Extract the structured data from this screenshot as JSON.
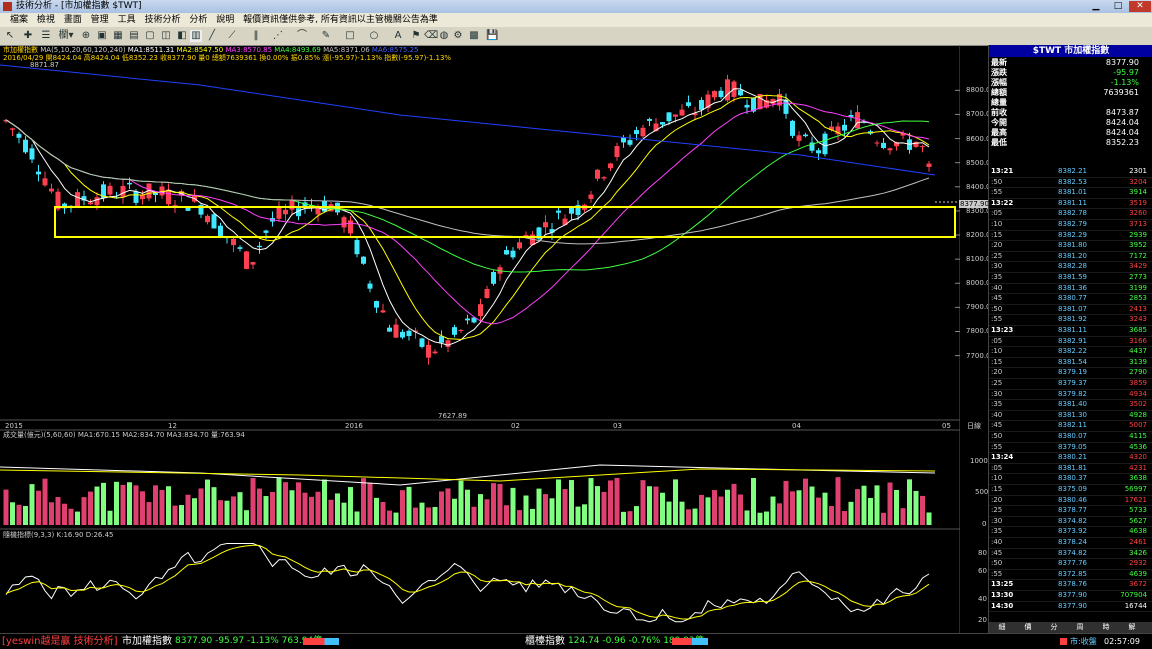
{
  "window": {
    "title": "技術分析 - [市加權指數 $TWT]"
  },
  "menu": [
    "檔案",
    "檢視",
    "畫面",
    "管理",
    "工具",
    "技術分析",
    "分析",
    "說明",
    "報價資訊僅供參考, 所有資訊以主管機關公告為準"
  ],
  "chart": {
    "ma_legend": "MA(5,10,20,60,120,240)",
    "ma1": "MA1:8511.31",
    "ma2": "MA2:8547.50",
    "ma3": "MA3:8570.85",
    "ma4": "MA4:8493.69",
    "ma5": "MA5:8371.06",
    "ma6": "MA6:8575.25",
    "name_label": "市加權指數",
    "info_line": "2016/04/29 開8424.04 高8424.04 低8352.23 收8377.90 量0 總額7639361 換0.00% 振0.85% 漲(-95.97)-1.13% 指數(-95.97)-1.13%",
    "hi_label": "8871.87",
    "lo_label": "7627.89",
    "price_tag": "8377.90",
    "price_axis": [
      "8800.0",
      "8700.0",
      "8600.0",
      "8500.0",
      "8400.0",
      "8300.0",
      "8200.0",
      "8100.0",
      "8000.0",
      "7900.0",
      "7800.0",
      "7700.0"
    ],
    "x_labels": [
      "2015",
      "12",
      "2016",
      "02",
      "03",
      "04",
      "05"
    ],
    "x_end": "日線",
    "vol_legend": "成交量(億元)(5,60,60) MA1:670.15 MA2:834.70 MA3:834.70 量:763.94",
    "vol_axis": [
      "1000",
      "500",
      "0"
    ],
    "kd_legend": "隨機指標(9,3,3) K:16.90 D:26.45",
    "kd_axis": [
      "80",
      "60",
      "40",
      "20"
    ]
  },
  "quote": {
    "title": "$TWT 市加權指數",
    "rows": [
      {
        "label": "最新",
        "value": "8377.90",
        "color": "#ffffff"
      },
      {
        "label": "漲跌",
        "value": "-95.97",
        "color": "#40ff40"
      },
      {
        "label": "漲幅",
        "value": "-1.13%",
        "color": "#40ff40"
      },
      {
        "label": "總額",
        "value": "7639361",
        "color": "#ffffff"
      },
      {
        "label": "總量",
        "value": "",
        "color": "#ffffff"
      },
      {
        "label": "前收",
        "value": "8473.87",
        "color": "#ffffff"
      },
      {
        "label": "今開",
        "value": "8424.04",
        "color": "#ffffff"
      },
      {
        "label": "最高",
        "value": "8424.04",
        "color": "#ffffff"
      },
      {
        "label": "最低",
        "value": "8352.23",
        "color": "#ffffff"
      }
    ],
    "ticks": [
      {
        "t": "13:21",
        "p": "8382.21",
        "v": "2301",
        "bold": true
      },
      {
        "t": ":50",
        "p": "8382.53",
        "v": "3204"
      },
      {
        "t": ":55",
        "p": "8381.01",
        "v": "3914"
      },
      {
        "t": "13:22",
        "p": "8381.11",
        "v": "3519",
        "bold": true
      },
      {
        "t": ":05",
        "p": "8382.78",
        "v": "3260"
      },
      {
        "t": ":10",
        "p": "8382.79",
        "v": "3713"
      },
      {
        "t": ":15",
        "p": "8382.29",
        "v": "2939"
      },
      {
        "t": ":20",
        "p": "8381.80",
        "v": "3952"
      },
      {
        "t": ":25",
        "p": "8381.20",
        "v": "7172"
      },
      {
        "t": ":30",
        "p": "8382.28",
        "v": "3429"
      },
      {
        "t": ":35",
        "p": "8381.59",
        "v": "2773"
      },
      {
        "t": ":40",
        "p": "8381.36",
        "v": "3199"
      },
      {
        "t": ":45",
        "p": "8380.77",
        "v": "2853"
      },
      {
        "t": ":50",
        "p": "8381.07",
        "v": "2413"
      },
      {
        "t": ":55",
        "p": "8381.92",
        "v": "3243"
      },
      {
        "t": "13:23",
        "p": "8381.11",
        "v": "3685",
        "bold": true
      },
      {
        "t": ":05",
        "p": "8382.91",
        "v": "3166"
      },
      {
        "t": ":10",
        "p": "8382.22",
        "v": "4437"
      },
      {
        "t": ":15",
        "p": "8381.54",
        "v": "3139"
      },
      {
        "t": ":20",
        "p": "8379.19",
        "v": "2790"
      },
      {
        "t": ":25",
        "p": "8379.37",
        "v": "3859"
      },
      {
        "t": ":30",
        "p": "8379.82",
        "v": "4934"
      },
      {
        "t": ":35",
        "p": "8381.40",
        "v": "3502"
      },
      {
        "t": ":40",
        "p": "8381.30",
        "v": "4928"
      },
      {
        "t": ":45",
        "p": "8382.11",
        "v": "5007"
      },
      {
        "t": ":50",
        "p": "8380.07",
        "v": "4115"
      },
      {
        "t": ":55",
        "p": "8379.05",
        "v": "4536"
      },
      {
        "t": "13:24",
        "p": "8380.21",
        "v": "4320",
        "bold": true
      },
      {
        "t": ":05",
        "p": "8381.81",
        "v": "4231"
      },
      {
        "t": ":10",
        "p": "8380.37",
        "v": "3638"
      },
      {
        "t": ":15",
        "p": "8375.09",
        "v": "56997"
      },
      {
        "t": ":20",
        "p": "8380.46",
        "v": "17621"
      },
      {
        "t": ":25",
        "p": "8378.77",
        "v": "5733"
      },
      {
        "t": ":30",
        "p": "8374.82",
        "v": "5627"
      },
      {
        "t": ":35",
        "p": "8373.92",
        "v": "4638"
      },
      {
        "t": ":40",
        "p": "8378.24",
        "v": "2461"
      },
      {
        "t": ":45",
        "p": "8374.82",
        "v": "3426"
      },
      {
        "t": ":50",
        "p": "8377.76",
        "v": "2932"
      },
      {
        "t": ":55",
        "p": "8372.85",
        "v": "4639"
      },
      {
        "t": "13:25",
        "p": "8378.76",
        "v": "3672",
        "bold": true
      },
      {
        "t": "13:30",
        "p": "8377.90",
        "v": "707904",
        "bold": true
      },
      {
        "t": "14:30",
        "p": "8377.90",
        "v": "16744",
        "bold": true
      }
    ],
    "tabs": [
      "細",
      "價",
      "分",
      "周",
      "時",
      "解"
    ]
  },
  "status": {
    "brand": "[yeswin越是贏 技術分析]",
    "idx1_name": "市加權指數",
    "idx1_vals": "8377.90 -95.97 -1.13% 763.94億",
    "idx2_name": "櫃檯指數",
    "idx2_vals": "124.74 -0.96 -0.76% 189.92億",
    "mkt": "市:收盤",
    "clock": "02:57:09"
  }
}
